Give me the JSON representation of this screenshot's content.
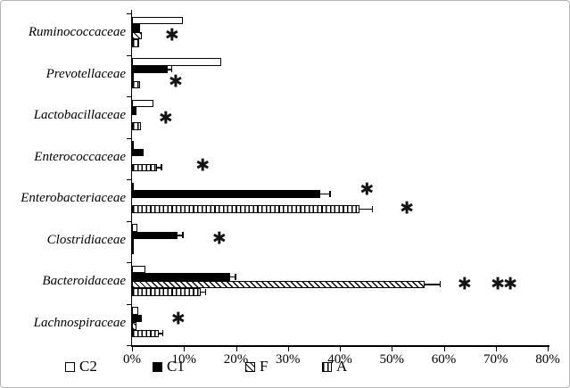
{
  "figure": {
    "background": "#ffffff",
    "border_color": "#b3b3b3",
    "bar_color": "#000000"
  },
  "legend": {
    "position": "bottom",
    "items": [
      {
        "label": "C2",
        "style": "open"
      },
      {
        "label": "C1",
        "style": "solid"
      },
      {
        "label": "F",
        "style": "diagonal"
      },
      {
        "label": "A",
        "style": "vertical"
      }
    ]
  },
  "chart_data": {
    "type": "bar",
    "orientation": "horizontal",
    "unit": "%",
    "title": "",
    "xlabel": "",
    "ylabel": "",
    "grid": false,
    "xlim": [
      0,
      80
    ],
    "x_ticks": [
      "0%",
      "10%",
      "20%",
      "30%",
      "40%",
      "50%",
      "60%",
      "70%",
      "80%"
    ],
    "categories": [
      "Ruminococcaceae",
      "Prevotellaceae",
      "Lactobacillaceae",
      "Enterococcaceae",
      "Enterobacteriaceae",
      "Clostridiaceae",
      "Bacteroidaceae",
      "Lachnospiraceae"
    ],
    "series": [
      {
        "name": "C2",
        "pattern": "open",
        "values": [
          9.8,
          17.2,
          4.1,
          0.3,
          0.3,
          1.0,
          2.6,
          1.2
        ],
        "errors": [
          0,
          0,
          0,
          0,
          0,
          0,
          0,
          0
        ]
      },
      {
        "name": "C1",
        "pattern": "solid",
        "values": [
          1.6,
          6.8,
          0.9,
          2.2,
          36.2,
          8.8,
          18.9,
          1.9
        ],
        "errors": [
          0,
          0.8,
          0,
          0,
          1.9,
          1.0,
          1.0,
          0
        ]
      },
      {
        "name": "F",
        "pattern": "diagonal-hatch",
        "values": [
          1.9,
          0.3,
          0,
          0,
          0,
          0.4,
          56.3,
          0.9
        ],
        "errors": [
          0,
          0,
          0,
          0,
          0,
          0,
          3.0,
          0
        ]
      },
      {
        "name": "A",
        "pattern": "vertical-hatch",
        "values": [
          1.4,
          1.5,
          1.7,
          4.8,
          43.7,
          0.3,
          13.2,
          5.1
        ],
        "errors": [
          0,
          0,
          0,
          0.9,
          2.6,
          0,
          1.0,
          0.8
        ]
      }
    ],
    "significance_markers": [
      {
        "category": "Ruminococcaceae",
        "x": 7.7,
        "row": 2,
        "symbol": "✱"
      },
      {
        "category": "Prevotellaceae",
        "x": 8.4,
        "row": 2.7,
        "symbol": "✱"
      },
      {
        "category": "Lactobacillaceae",
        "x": 6.5,
        "row": 2,
        "symbol": "✱"
      },
      {
        "category": "Enterococcaceae",
        "x": 13.6,
        "row": 2.8,
        "symbol": "✱"
      },
      {
        "category": "Enterobacteriaceae",
        "x": 45.2,
        "row": 0.5,
        "symbol": "✱"
      },
      {
        "category": "Enterobacteriaceae",
        "x": 52.9,
        "row": 3,
        "symbol": "✱"
      },
      {
        "category": "Clostridiaceae",
        "x": 16.8,
        "row": 1.5,
        "symbol": "✱"
      },
      {
        "category": "Bacteroidaceae",
        "x": 64.0,
        "row": 2,
        "symbol": "✱"
      },
      {
        "category": "Bacteroidaceae",
        "x": 70.4,
        "row": 2,
        "symbol": "✱"
      },
      {
        "category": "Bacteroidaceae",
        "x": 72.8,
        "row": 2,
        "symbol": "✱"
      },
      {
        "category": "Lachnospiraceae",
        "x": 8.9,
        "row": 1.1,
        "symbol": "✱"
      }
    ]
  }
}
